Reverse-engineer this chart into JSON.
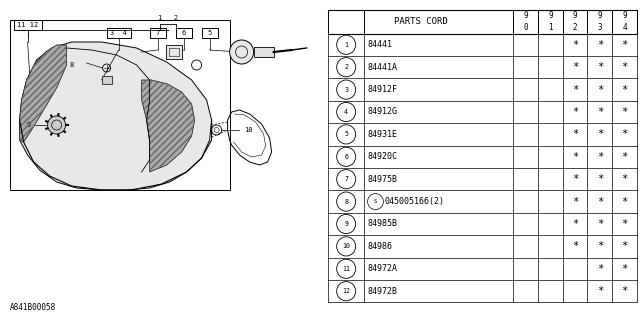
{
  "diagram_code": "A841B00058",
  "bg_color": "#ffffff",
  "table_header": "PARTS CORD",
  "columns": [
    "9\n0",
    "9\n1",
    "9\n2",
    "9\n3",
    "9\n4"
  ],
  "col_labels": [
    "90",
    "91",
    "92",
    "93",
    "94"
  ],
  "rows": [
    {
      "num": 1,
      "part": "84441",
      "marks": [
        false,
        false,
        true,
        true,
        true
      ]
    },
    {
      "num": 2,
      "part": "84441A",
      "marks": [
        false,
        false,
        true,
        true,
        true
      ]
    },
    {
      "num": 3,
      "part": "84912F",
      "marks": [
        false,
        false,
        true,
        true,
        true
      ]
    },
    {
      "num": 4,
      "part": "84912G",
      "marks": [
        false,
        false,
        true,
        true,
        true
      ]
    },
    {
      "num": 5,
      "part": "84931E",
      "marks": [
        false,
        false,
        true,
        true,
        true
      ]
    },
    {
      "num": 6,
      "part": "84920C",
      "marks": [
        false,
        false,
        true,
        true,
        true
      ]
    },
    {
      "num": 7,
      "part": "84975B",
      "marks": [
        false,
        false,
        true,
        true,
        true
      ]
    },
    {
      "num": 8,
      "part": "S045005166(2)",
      "marks": [
        false,
        false,
        true,
        true,
        true
      ]
    },
    {
      "num": 9,
      "part": "84985B",
      "marks": [
        false,
        false,
        true,
        true,
        true
      ]
    },
    {
      "num": 10,
      "part": "84986",
      "marks": [
        false,
        false,
        true,
        true,
        true
      ]
    },
    {
      "num": 11,
      "part": "84972A",
      "marks": [
        false,
        false,
        false,
        true,
        true
      ]
    },
    {
      "num": 12,
      "part": "84972B",
      "marks": [
        false,
        false,
        false,
        true,
        true
      ]
    }
  ],
  "lc": "#000000",
  "tc": "#000000",
  "gray_dark": "#888888",
  "gray_light": "#cccccc"
}
